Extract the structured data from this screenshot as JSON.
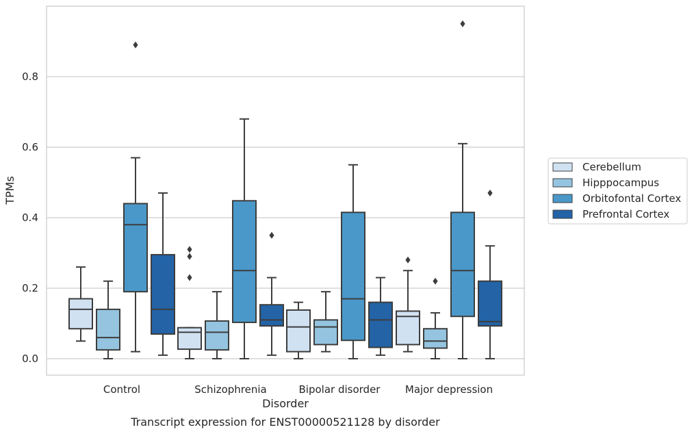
{
  "caption": "Transcript expression for ENST00000521128 by disorder",
  "chart_data": {
    "type": "box",
    "xlabel": "Disorder",
    "ylabel": "TPMs",
    "ylim": [
      -0.045,
      0.998
    ],
    "yticks": [
      0.0,
      0.2,
      0.4,
      0.6,
      0.8
    ],
    "ytick_labels": [
      "0.0",
      "0.2",
      "0.4",
      "0.6",
      "0.8"
    ],
    "grid": "horizontal",
    "legend_position": "right",
    "categories": [
      "Control",
      "Schizophrenia",
      "Bipolar disorder",
      "Major depression"
    ],
    "series": [
      {
        "name": "Cerebellum",
        "color": "#d0e1f2",
        "boxes": [
          {
            "whislo": 0.05,
            "q1": 0.085,
            "med": 0.14,
            "q3": 0.17,
            "whishi": 0.26,
            "fliers": []
          },
          {
            "whislo": 0.0,
            "q1": 0.027,
            "med": 0.075,
            "q3": 0.088,
            "whishi": 0.088,
            "fliers": [
              0.23,
              0.29,
              0.31
            ]
          },
          {
            "whislo": 0.0,
            "q1": 0.02,
            "med": 0.09,
            "q3": 0.138,
            "whishi": 0.16,
            "fliers": []
          },
          {
            "whislo": 0.02,
            "q1": 0.04,
            "med": 0.12,
            "q3": 0.135,
            "whishi": 0.25,
            "fliers": [
              0.28
            ]
          }
        ]
      },
      {
        "name": "Hipppocampus",
        "color": "#94c4df",
        "boxes": [
          {
            "whislo": 0.0,
            "q1": 0.025,
            "med": 0.06,
            "q3": 0.14,
            "whishi": 0.22,
            "fliers": []
          },
          {
            "whislo": 0.0,
            "q1": 0.025,
            "med": 0.075,
            "q3": 0.107,
            "whishi": 0.19,
            "fliers": []
          },
          {
            "whislo": 0.02,
            "q1": 0.04,
            "med": 0.09,
            "q3": 0.11,
            "whishi": 0.19,
            "fliers": []
          },
          {
            "whislo": 0.0,
            "q1": 0.03,
            "med": 0.05,
            "q3": 0.085,
            "whishi": 0.13,
            "fliers": [
              0.22
            ]
          }
        ]
      },
      {
        "name": "Orbitofontal Cortex",
        "color": "#4a98c9",
        "boxes": [
          {
            "whislo": 0.02,
            "q1": 0.19,
            "med": 0.38,
            "q3": 0.44,
            "whishi": 0.57,
            "fliers": [
              0.89
            ]
          },
          {
            "whislo": 0.0,
            "q1": 0.103,
            "med": 0.25,
            "q3": 0.448,
            "whishi": 0.68,
            "fliers": []
          },
          {
            "whislo": 0.0,
            "q1": 0.052,
            "med": 0.17,
            "q3": 0.415,
            "whishi": 0.55,
            "fliers": []
          },
          {
            "whislo": 0.0,
            "q1": 0.12,
            "med": 0.25,
            "q3": 0.415,
            "whishi": 0.61,
            "fliers": [
              0.95
            ]
          }
        ]
      },
      {
        "name": "Prefrontal Cortex",
        "color": "#2363a6",
        "boxes": [
          {
            "whislo": 0.01,
            "q1": 0.07,
            "med": 0.14,
            "q3": 0.295,
            "whishi": 0.47,
            "fliers": []
          },
          {
            "whislo": 0.01,
            "q1": 0.093,
            "med": 0.11,
            "q3": 0.153,
            "whishi": 0.23,
            "fliers": [
              0.35
            ]
          },
          {
            "whislo": 0.01,
            "q1": 0.032,
            "med": 0.11,
            "q3": 0.16,
            "whishi": 0.23,
            "fliers": []
          },
          {
            "whislo": 0.0,
            "q1": 0.093,
            "med": 0.105,
            "q3": 0.22,
            "whishi": 0.32,
            "fliers": [
              0.47
            ]
          }
        ]
      }
    ]
  },
  "colors": {
    "grid": "#cccccc",
    "frame": "#cccccc",
    "line": "#3d3d3d"
  }
}
